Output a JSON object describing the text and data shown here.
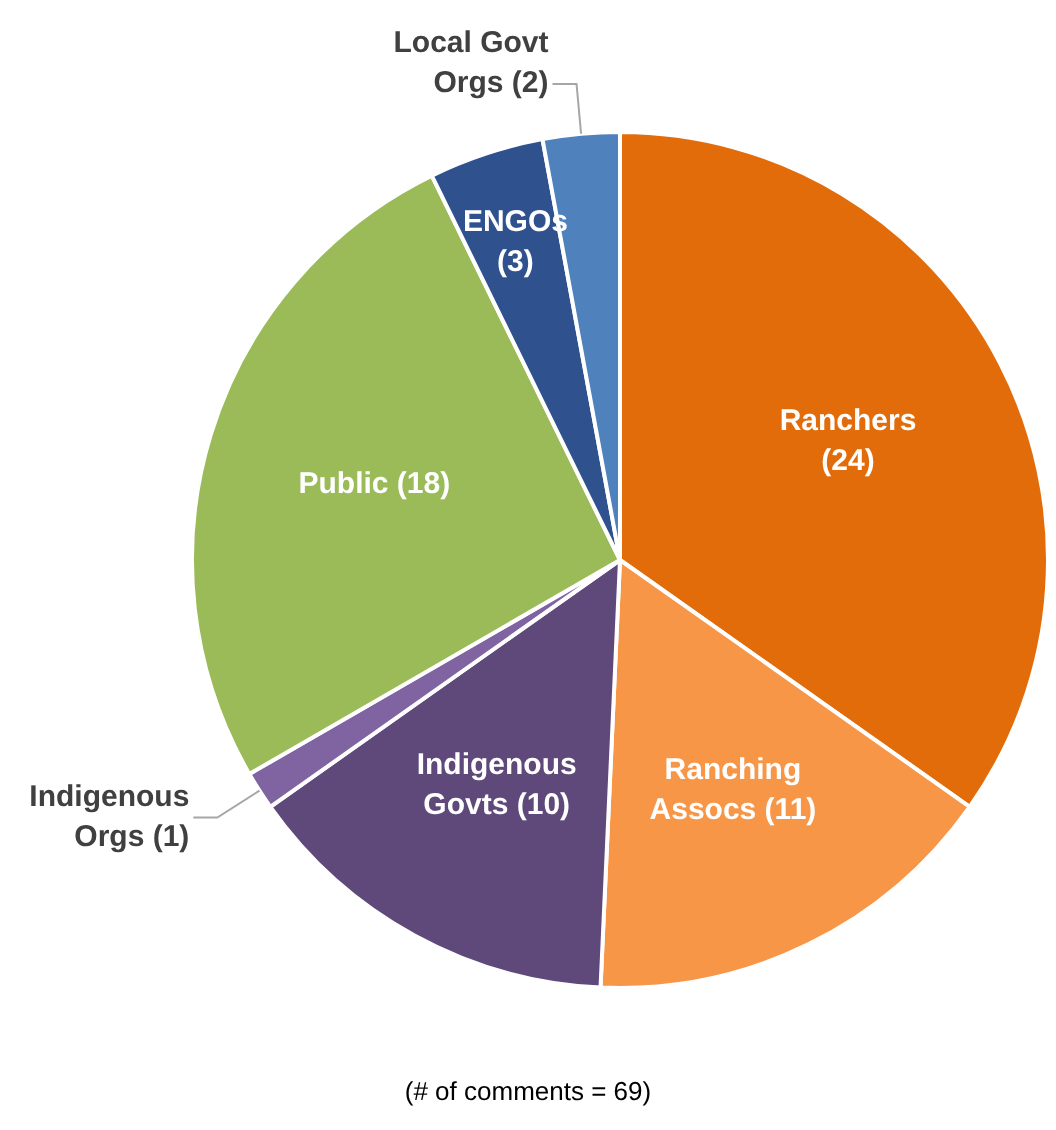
{
  "chart_data": {
    "type": "pie",
    "categories": [
      "Ranchers",
      "Ranching Assocs",
      "Indigenous Govts",
      "Indigenous Orgs",
      "Public",
      "ENGOs",
      "Local Govt Orgs"
    ],
    "values": [
      24,
      11,
      10,
      1,
      18,
      3,
      2
    ],
    "value_labels": [
      "(24)",
      "(11)",
      "(10)",
      "(1)",
      "(18)",
      "(3)",
      "(2)"
    ],
    "colors": [
      "#e36c0a",
      "#f79646",
      "#5f497a",
      "#8064a2",
      "#9bbb59",
      "#2f528f",
      "#4f81bd"
    ],
    "legend": false,
    "annotations": [
      "(# of comments = 69)"
    ]
  }
}
